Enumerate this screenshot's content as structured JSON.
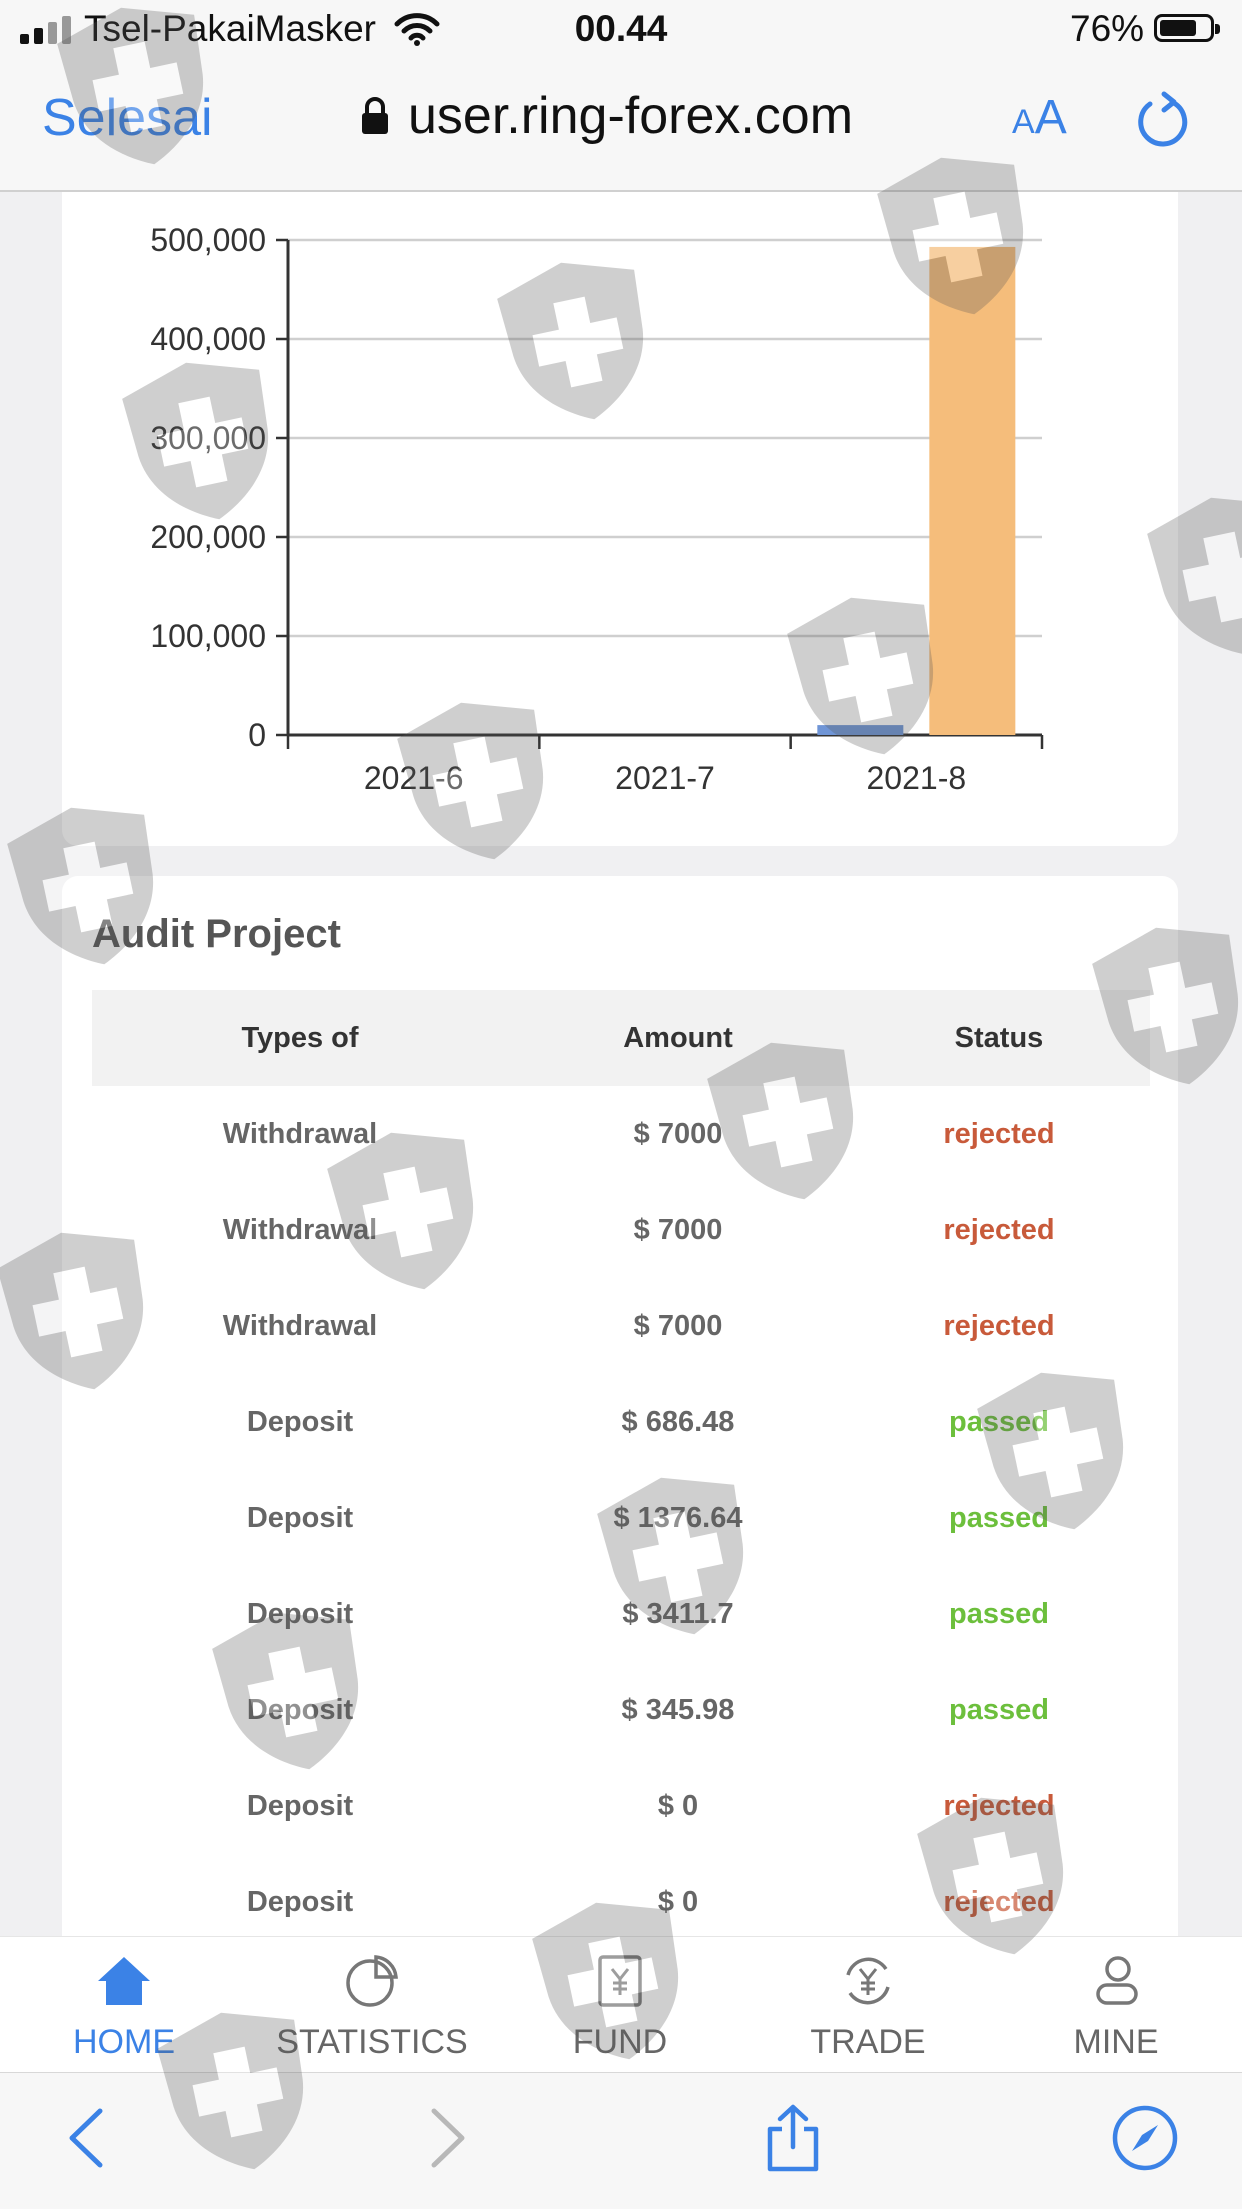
{
  "status_bar": {
    "carrier": "Tsel-PakaiMasker",
    "time": "00.44",
    "battery_percent": "76%",
    "battery_level": 0.76
  },
  "browser": {
    "done_label": "Selesai",
    "url": "user.ring-forex.com",
    "aa_small": "A",
    "aa_big": "A"
  },
  "chart_data": {
    "type": "bar",
    "categories": [
      "2021-6",
      "2021-7",
      "2021-8"
    ],
    "series": [
      {
        "color": "#6f95d6",
        "values": [
          0,
          0,
          10000
        ]
      },
      {
        "color": "#f5bd7b",
        "values": [
          0,
          0,
          493000
        ]
      }
    ],
    "yticks": [
      0,
      100000,
      200000,
      300000,
      400000,
      500000
    ],
    "ytick_labels": [
      "0",
      "100,000",
      "200,000",
      "300,000",
      "400,000",
      "500,000"
    ],
    "ylim": [
      0,
      500000
    ],
    "grid": true
  },
  "audit": {
    "title": "Audit Project",
    "columns": [
      "Types of",
      "Amount",
      "Status"
    ],
    "rows": [
      {
        "type": "Withdrawal",
        "amount": "$ 7000",
        "status": "rejected"
      },
      {
        "type": "Withdrawal",
        "amount": "$ 7000",
        "status": "rejected"
      },
      {
        "type": "Withdrawal",
        "amount": "$ 7000",
        "status": "rejected"
      },
      {
        "type": "Deposit",
        "amount": "$ 686.48",
        "status": "passed"
      },
      {
        "type": "Deposit",
        "amount": "$ 1376.64",
        "status": "passed"
      },
      {
        "type": "Deposit",
        "amount": "$ 3411.7",
        "status": "passed"
      },
      {
        "type": "Deposit",
        "amount": "$ 345.98",
        "status": "passed"
      },
      {
        "type": "Deposit",
        "amount": "$ 0",
        "status": "rejected"
      },
      {
        "type": "Deposit",
        "amount": "$ 0",
        "status": "rejected"
      }
    ],
    "status_colors": {
      "rejected": "#c85a3a",
      "passed": "#6cbf3c"
    }
  },
  "tabbar": {
    "items": [
      {
        "label": "HOME",
        "icon": "home-icon",
        "active": true
      },
      {
        "label": "STATISTICS",
        "icon": "pie-chart-icon",
        "active": false
      },
      {
        "label": "FUND",
        "icon": "fund-icon",
        "active": false
      },
      {
        "label": "TRADE",
        "icon": "yen-exchange-icon",
        "active": false
      },
      {
        "label": "MINE",
        "icon": "user-icon",
        "active": false
      }
    ],
    "active_color": "#3b82e6",
    "inactive_color": "#666666"
  },
  "toolbar": {
    "icons": [
      "back-icon",
      "forward-icon",
      "share-icon",
      "compass-icon"
    ]
  },
  "watermark": {
    "icon": "shield-plus-icon"
  }
}
